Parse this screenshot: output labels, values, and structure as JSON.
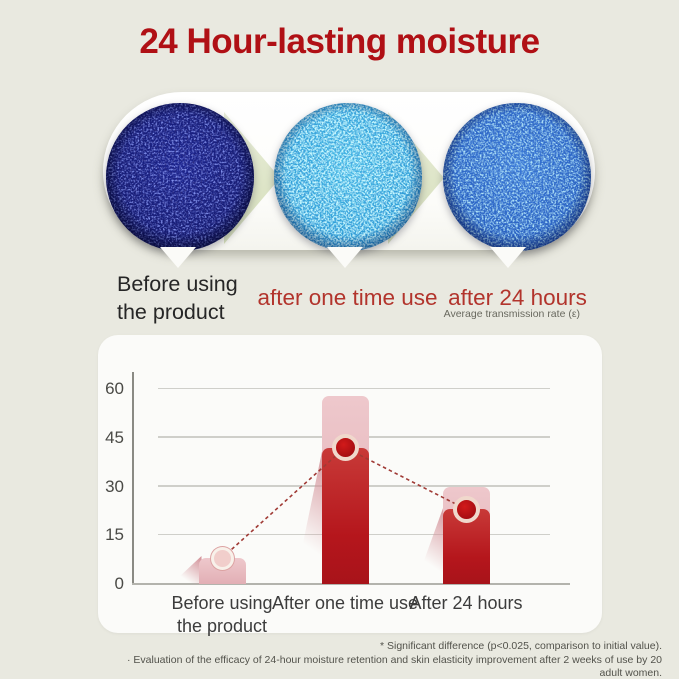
{
  "title": "24 Hour-lasting moisture",
  "stages": {
    "before": {
      "line1": "Before using",
      "line2": "the product"
    },
    "one_time": {
      "label": "after one time use"
    },
    "hours24": {
      "label": "after 24 hours"
    }
  },
  "axis_note": "Average transmission rate (ε)",
  "microscope_images": [
    {
      "name": "before-sample",
      "base_color": "#151b74",
      "speckle_color": "#3b49d8"
    },
    {
      "name": "after-one-time-sample",
      "base_color": "#2f9fd8",
      "speckle_color": "#8fe9fb"
    },
    {
      "name": "after-24-hours-sample",
      "base_color": "#2a63c6",
      "speckle_color": "#6ec2f0"
    }
  ],
  "chart_data": {
    "type": "bar",
    "title": "",
    "xlabel": "",
    "ylabel": "Average transmission rate (ε)",
    "categories": [
      "Before using the product",
      "After one time use",
      "After 24 hours"
    ],
    "xlabels": [
      [
        "Before using",
        "the product"
      ],
      [
        "After one time use"
      ],
      [
        "After 24 hours"
      ]
    ],
    "series": [
      {
        "name": "light-bar",
        "values": [
          8,
          58,
          30
        ],
        "color": "#e7b9be"
      },
      {
        "name": "dark-bar",
        "values": [
          null,
          42,
          23
        ],
        "color": "#b5161c"
      }
    ],
    "marker_line": {
      "values": [
        8,
        42,
        23
      ],
      "style": "dotted",
      "color": "#a03a35"
    },
    "yticks": [
      0,
      15,
      30,
      45,
      60
    ],
    "ylim": [
      0,
      64
    ],
    "grid": true,
    "legend": "none"
  },
  "footnotes": [
    "* Significant difference (p<0.025, comparison to initial value).",
    "· Evaluation of the efficacy of 24-hour moisture retention and skin elasticity improvement after 2 weeks of use by 20 adult women."
  ],
  "colors": {
    "background": "#e9e9e0",
    "title_red": "#b01015",
    "label_red": "#b2342c",
    "arrow_green": "#dce3c6",
    "card_bg": "#fbfbf9"
  }
}
